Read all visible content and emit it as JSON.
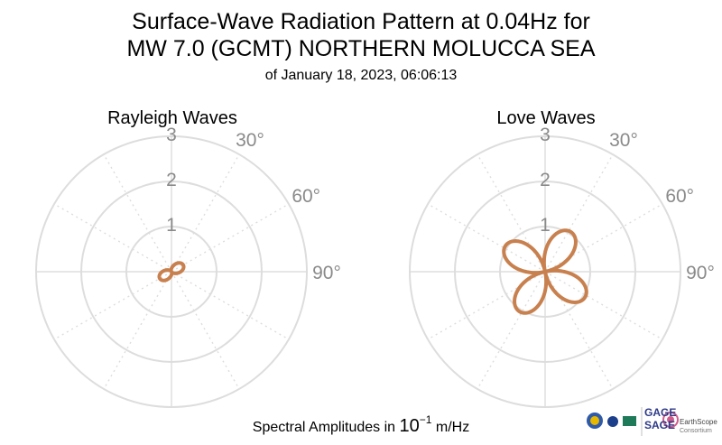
{
  "header": {
    "title_line1": "Surface-Wave Radiation Pattern at 0.04Hz for",
    "title_line2": "MW 7.0 (GCMT) NORTHERN MOLUCCA SEA",
    "subtitle": "of January 18, 2023, 06:06:13"
  },
  "footer": {
    "label_prefix": "Spectral Amplitudes in ",
    "label_base": "10",
    "label_exp": "−1",
    "label_unit": " m/Hz"
  },
  "logos": {
    "gage": "GAGE",
    "sage": "SAGE",
    "earthscope": "EarthScope",
    "consortium": "Consortium"
  },
  "colors": {
    "pattern": "#c8804e",
    "grid": "#dddddd",
    "label": "#8a8a8a"
  },
  "chart_data": [
    {
      "type": "polar-line",
      "title": "Rayleigh Waves",
      "radial_ticks": [
        "1",
        "2",
        "3"
      ],
      "radial_max": 3,
      "angle_tick_labels": [
        "30°",
        "60°",
        "90°"
      ],
      "angle_label_degrees": [
        30,
        60,
        90
      ],
      "grid": true,
      "series_color": "#c8804e",
      "pattern": {
        "lobes": 2,
        "peak_amplitude": 0.3,
        "peak_azimuths_deg": [
          60,
          240
        ],
        "lobe_width_exponent": 4
      }
    },
    {
      "type": "polar-line",
      "title": "Love Waves",
      "radial_ticks": [
        "1",
        "2",
        "3"
      ],
      "radial_max": 3,
      "angle_tick_labels": [
        "30°",
        "60°",
        "90°"
      ],
      "angle_label_degrees": [
        30,
        60,
        90
      ],
      "grid": true,
      "series_color": "#c8804e",
      "pattern": {
        "lobes": 4,
        "peak_amplitude": 1.05,
        "peak_azimuths_deg": [
          33,
          123,
          213,
          303
        ],
        "lobe_width_exponent": 1
      }
    }
  ]
}
